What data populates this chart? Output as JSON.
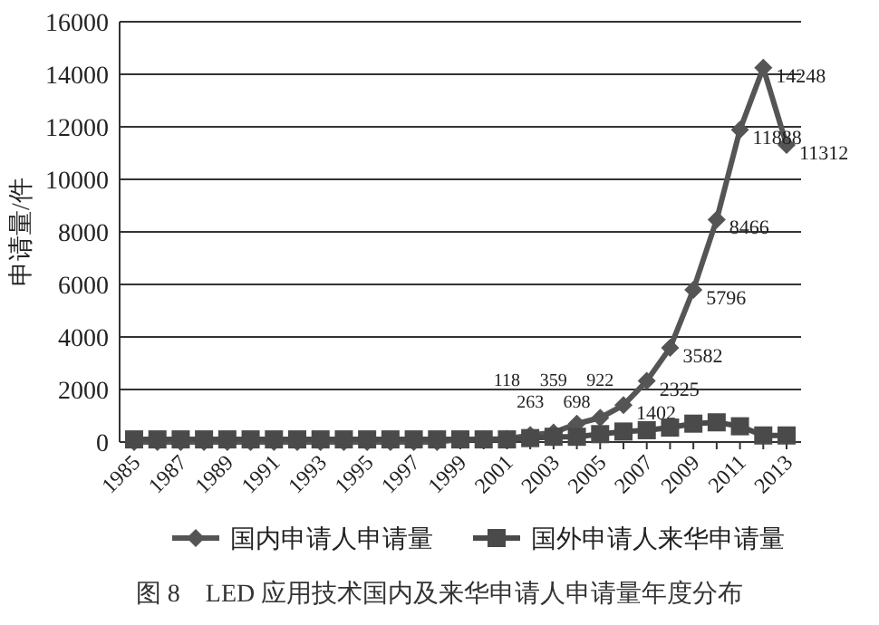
{
  "chart_data": {
    "type": "line",
    "title": "图 8　LED 应用技术国内及来华申请人申请量年度分布",
    "ylabel": "申请量/件",
    "categories": [
      "1985",
      null,
      "1987",
      null,
      "1989",
      null,
      "1991",
      null,
      "1993",
      null,
      "1995",
      null,
      "1997",
      null,
      "1999",
      null,
      "2001",
      null,
      "2003",
      null,
      "2005",
      null,
      "2007",
      null,
      "2009",
      null,
      "2011",
      null,
      "2013"
    ],
    "series": [
      {
        "name": "国内申请人申请量",
        "color": "#555555",
        "marker": "diamond",
        "values": [
          0,
          0,
          0,
          0,
          0,
          0,
          0,
          0,
          0,
          0,
          0,
          0,
          0,
          0,
          100,
          100,
          118,
          263,
          359,
          698,
          922,
          1402,
          2325,
          3582,
          5796,
          8466,
          11888,
          14248,
          11312
        ],
        "value_labels": [
          null,
          null,
          null,
          null,
          null,
          null,
          null,
          null,
          null,
          null,
          null,
          null,
          null,
          null,
          null,
          null,
          "118",
          "263",
          "359",
          "698",
          "922",
          "1402",
          "2325",
          "3582",
          "5796",
          "8466",
          "11888",
          "14248",
          "11312"
        ]
      },
      {
        "name": "国外申请人来华申请量",
        "color": "#4a4a4a",
        "marker": "square",
        "values": [
          100,
          100,
          100,
          100,
          100,
          100,
          100,
          100,
          100,
          100,
          100,
          100,
          100,
          100,
          100,
          100,
          100,
          150,
          200,
          200,
          300,
          400,
          450,
          550,
          700,
          750,
          600,
          250,
          250
        ]
      }
    ],
    "ylim": [
      0,
      16000
    ],
    "yticks": [
      0,
      2000,
      4000,
      6000,
      8000,
      10000,
      12000,
      14000,
      16000
    ],
    "grid": "y",
    "legend": "bottom"
  }
}
